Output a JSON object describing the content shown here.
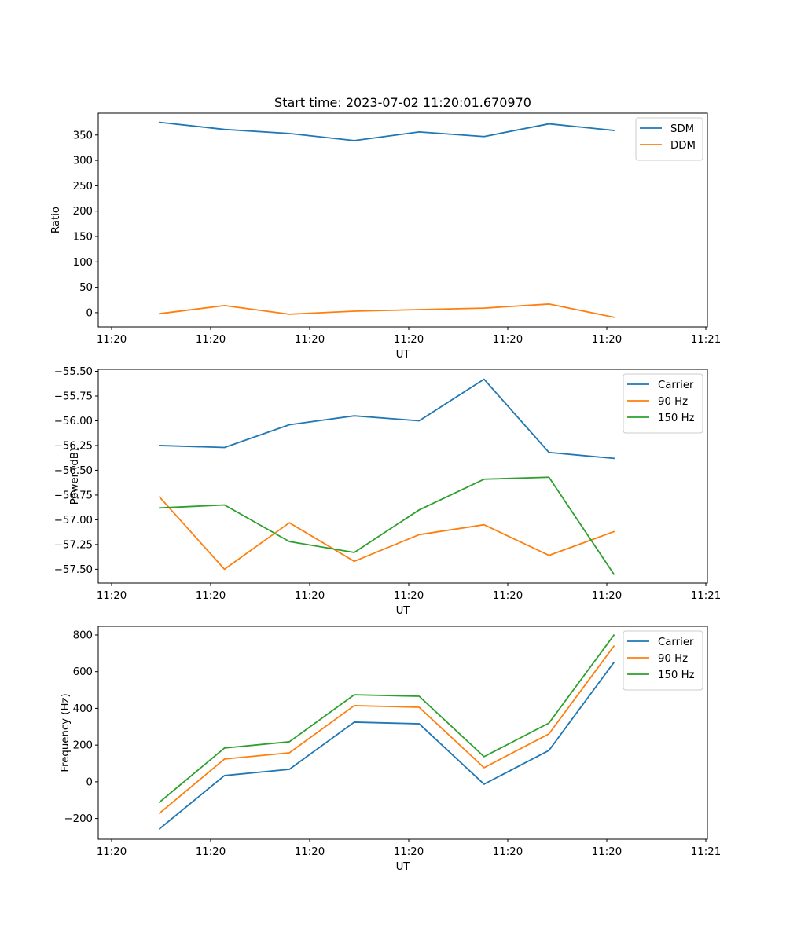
{
  "figure": {
    "title": "Start time: 2023-07-02 11:20:01.670970"
  },
  "chart_data": [
    {
      "type": "line",
      "title": "Start time: 2023-07-02 11:20:01.670970",
      "xlabel": "UT",
      "ylabel": "Ratio",
      "x": [
        0,
        1,
        2,
        3,
        4,
        5,
        6,
        7
      ],
      "xtick_labels": [
        "11:20",
        "11:20",
        "11:20",
        "11:20",
        "11:20",
        "11:20",
        "11:21"
      ],
      "ylim": [
        -28,
        393
      ],
      "yticks": [
        0,
        50,
        100,
        150,
        200,
        250,
        300,
        350
      ],
      "ytick_labels": [
        "0",
        "50",
        "100",
        "150",
        "200",
        "250",
        "300",
        "350"
      ],
      "grid": false,
      "legend_position": "top-right",
      "series": [
        {
          "name": "SDM",
          "color": "#1f77b4",
          "values": [
            375,
            361,
            353,
            339,
            356,
            347,
            372,
            359
          ]
        },
        {
          "name": "DDM",
          "color": "#ff7f0e",
          "values": [
            -2,
            14,
            -3,
            3,
            6,
            9,
            17,
            -9
          ]
        }
      ]
    },
    {
      "type": "line",
      "title": "",
      "xlabel": "UT",
      "ylabel": "Power (dB)",
      "x": [
        0,
        1,
        2,
        3,
        4,
        5,
        6,
        7
      ],
      "xtick_labels": [
        "11:20",
        "11:20",
        "11:20",
        "11:20",
        "11:20",
        "11:20",
        "11:21"
      ],
      "ylim": [
        -57.64,
        -55.48
      ],
      "yticks": [
        -57.5,
        -57.25,
        -57.0,
        -56.75,
        -56.5,
        -56.25,
        -56.0,
        -55.75,
        -55.5
      ],
      "ytick_labels": [
        "−57.50",
        "−57.25",
        "−57.00",
        "−56.75",
        "−56.50",
        "−56.25",
        "−56.00",
        "−55.75",
        "−55.50"
      ],
      "grid": false,
      "legend_position": "top-right",
      "series": [
        {
          "name": "Carrier",
          "color": "#1f77b4",
          "values": [
            -56.25,
            -56.27,
            -56.04,
            -55.95,
            -56.0,
            -55.58,
            -56.32,
            -56.38
          ]
        },
        {
          "name": "90 Hz",
          "color": "#ff7f0e",
          "values": [
            -56.77,
            -57.5,
            -57.03,
            -57.42,
            -57.15,
            -57.05,
            -57.36,
            -57.12
          ]
        },
        {
          "name": "150 Hz",
          "color": "#2ca02c",
          "values": [
            -56.88,
            -56.85,
            -57.22,
            -57.33,
            -56.9,
            -56.59,
            -56.57,
            -57.55
          ]
        }
      ]
    },
    {
      "type": "line",
      "title": "",
      "xlabel": "UT",
      "ylabel": "Frequency (Hz)",
      "x": [
        0,
        1,
        2,
        3,
        4,
        5,
        6,
        7
      ],
      "xtick_labels": [
        "11:20",
        "11:20",
        "11:20",
        "11:20",
        "11:20",
        "11:20",
        "11:21"
      ],
      "ylim": [
        -313,
        847
      ],
      "yticks": [
        -200,
        0,
        200,
        400,
        600,
        800
      ],
      "ytick_labels": [
        "−200",
        "0",
        "200",
        "400",
        "600",
        "800"
      ],
      "grid": false,
      "legend_position": "top-right",
      "series": [
        {
          "name": "Carrier",
          "color": "#1f77b4",
          "values": [
            -256,
            34,
            68,
            325,
            316,
            -13,
            171,
            650
          ]
        },
        {
          "name": "90 Hz",
          "color": "#ff7f0e",
          "values": [
            -171,
            124,
            158,
            415,
            406,
            77,
            261,
            739
          ]
        },
        {
          "name": "150 Hz",
          "color": "#2ca02c",
          "values": [
            -111,
            184,
            218,
            474,
            466,
            137,
            320,
            799
          ]
        }
      ]
    }
  ]
}
